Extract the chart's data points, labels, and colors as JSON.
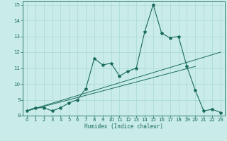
{
  "xlabel": "Humidex (Indice chaleur)",
  "ylabel": "",
  "xlim": [
    -0.5,
    23.5
  ],
  "ylim": [
    8,
    15.2
  ],
  "xticks": [
    0,
    1,
    2,
    3,
    4,
    5,
    6,
    7,
    8,
    9,
    10,
    11,
    12,
    13,
    14,
    15,
    16,
    17,
    18,
    19,
    20,
    21,
    22,
    23
  ],
  "yticks": [
    8,
    9,
    10,
    11,
    12,
    13,
    14,
    15
  ],
  "bg_color": "#c9ece8",
  "grid_color": "#a8d8d2",
  "line_color": "#1a6b5e",
  "main_line_x": [
    0,
    1,
    2,
    3,
    4,
    5,
    6,
    7,
    8,
    9,
    10,
    11,
    12,
    13,
    14,
    15,
    16,
    17,
    18,
    19,
    20,
    21,
    22,
    23
  ],
  "main_line_y": [
    8.3,
    8.5,
    8.5,
    8.3,
    8.5,
    8.8,
    9.0,
    9.7,
    11.6,
    11.2,
    11.3,
    10.5,
    10.8,
    11.0,
    13.3,
    15.0,
    13.2,
    12.9,
    13.0,
    11.1,
    9.6,
    8.3,
    8.4,
    8.2
  ],
  "line2_x": [
    0,
    23
  ],
  "line2_y": [
    8.3,
    12.0
  ],
  "line3_x": [
    0,
    20
  ],
  "line3_y": [
    8.3,
    11.1
  ],
  "xlabel_fontsize": 5.5,
  "tick_fontsize": 5.0
}
